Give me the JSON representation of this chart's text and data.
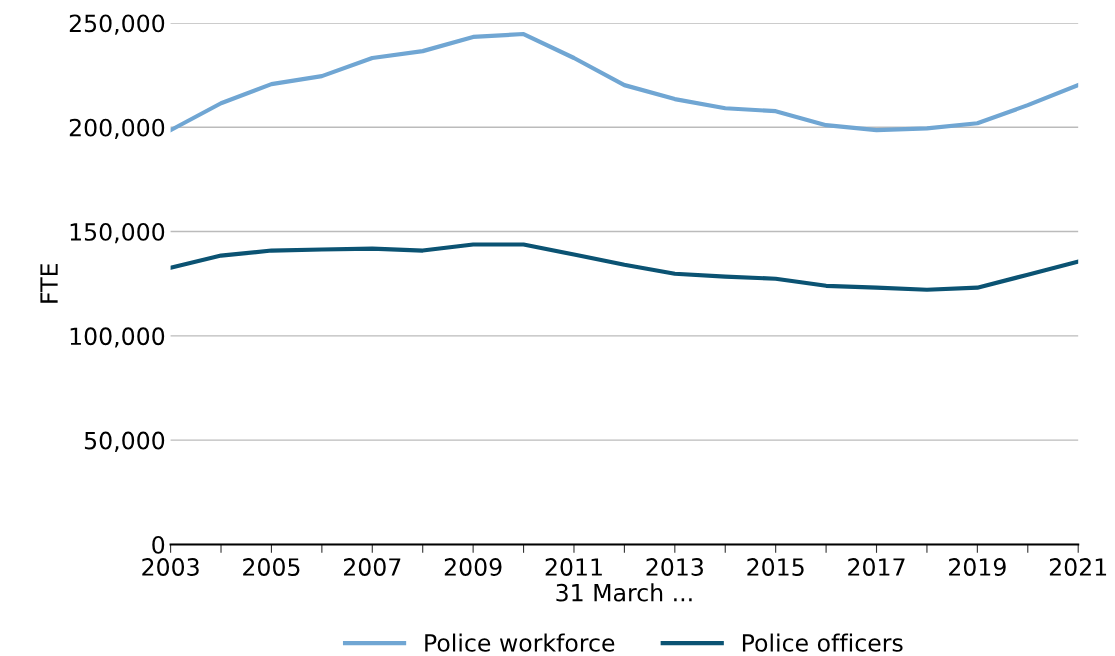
{
  "chart_data": {
    "type": "line",
    "xlabel": "31 March ...",
    "ylabel": "FTE",
    "x": [
      2003,
      2004,
      2005,
      2006,
      2007,
      2008,
      2009,
      2010,
      2011,
      2012,
      2013,
      2014,
      2015,
      2016,
      2017,
      2018,
      2019,
      2020,
      2021
    ],
    "series": [
      {
        "name": "Police workforce",
        "color": "#70a6d3",
        "values": [
          198600,
          211500,
          220700,
          224500,
          233200,
          236500,
          243300,
          244700,
          233200,
          220200,
          213500,
          209100,
          207700,
          201000,
          198600,
          199500,
          201900,
          210600,
          220200
        ]
      },
      {
        "name": "Police officers",
        "color": "#0b5373",
        "values": [
          132700,
          138500,
          140900,
          141400,
          141800,
          140900,
          143800,
          143800,
          139000,
          134100,
          129800,
          128400,
          127400,
          124000,
          123100,
          122100,
          123100,
          129300,
          135600
        ]
      }
    ],
    "xlim": [
      2003,
      2021
    ],
    "xticks": [
      2003,
      {
        "value": 2004,
        "label": null
      },
      2005,
      {
        "value": 2006,
        "label": null
      },
      2007,
      {
        "value": 2008,
        "label": null
      },
      2009,
      {
        "value": 2010,
        "label": null
      },
      2011,
      {
        "value": 2012,
        "label": null
      },
      2013,
      {
        "value": 2014,
        "label": null
      },
      2015,
      {
        "value": 2016,
        "label": null
      },
      2017,
      {
        "value": 2018,
        "label": null
      },
      2019,
      {
        "value": 2020,
        "label": null
      },
      2021
    ],
    "ylim": [
      0,
      250000
    ],
    "yticks": [
      {
        "value": 0,
        "label": "0"
      },
      {
        "value": 50000,
        "label": "50,000"
      },
      {
        "value": 100000,
        "label": "100,000"
      },
      {
        "value": 150000,
        "label": "150,000"
      },
      {
        "value": 200000,
        "label": "200,000"
      },
      {
        "value": 250000,
        "label": "250,000"
      }
    ],
    "grid": "y",
    "legend": "bottom",
    "marker": "none",
    "line_style": "solid"
  }
}
